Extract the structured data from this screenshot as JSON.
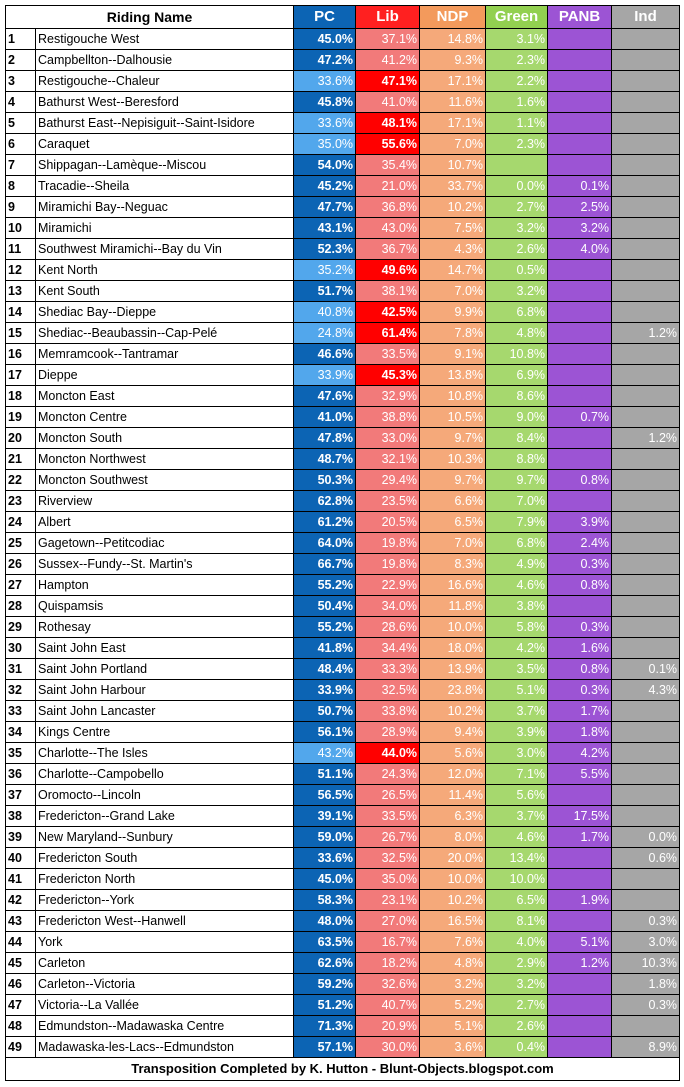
{
  "headers": {
    "riding": "Riding Name",
    "pc": "PC",
    "lib": "Lib",
    "ndp": "NDP",
    "green": "Green",
    "panb": "PANB",
    "ind": "Ind"
  },
  "rows": [
    {
      "n": "1",
      "name": "Restigouche West",
      "pc": "45.0%",
      "lib": "37.1%",
      "ndp": "14.8%",
      "green": "3.1%",
      "panb": "",
      "ind": "",
      "win": "pc"
    },
    {
      "n": "2",
      "name": "Campbellton--Dalhousie",
      "pc": "47.2%",
      "lib": "41.2%",
      "ndp": "9.3%",
      "green": "2.3%",
      "panb": "",
      "ind": "",
      "win": "pc"
    },
    {
      "n": "3",
      "name": "Restigouche--Chaleur",
      "pc": "33.6%",
      "lib": "47.1%",
      "ndp": "17.1%",
      "green": "2.2%",
      "panb": "",
      "ind": "",
      "win": "lib"
    },
    {
      "n": "4",
      "name": "Bathurst West--Beresford",
      "pc": "45.8%",
      "lib": "41.0%",
      "ndp": "11.6%",
      "green": "1.6%",
      "panb": "",
      "ind": "",
      "win": "pc"
    },
    {
      "n": "5",
      "name": "Bathurst East--Nepisiguit--Saint-Isidore",
      "pc": "33.6%",
      "lib": "48.1%",
      "ndp": "17.1%",
      "green": "1.1%",
      "panb": "",
      "ind": "",
      "win": "lib"
    },
    {
      "n": "6",
      "name": "Caraquet",
      "pc": "35.0%",
      "lib": "55.6%",
      "ndp": "7.0%",
      "green": "2.3%",
      "panb": "",
      "ind": "",
      "win": "lib"
    },
    {
      "n": "7",
      "name": "Shippagan--Lamèque--Miscou",
      "pc": "54.0%",
      "lib": "35.4%",
      "ndp": "10.7%",
      "green": "",
      "panb": "",
      "ind": "",
      "win": "pc"
    },
    {
      "n": "8",
      "name": "Tracadie--Sheila",
      "pc": "45.2%",
      "lib": "21.0%",
      "ndp": "33.7%",
      "green": "0.0%",
      "panb": "0.1%",
      "ind": "",
      "win": "pc"
    },
    {
      "n": "9",
      "name": "Miramichi Bay--Neguac",
      "pc": "47.7%",
      "lib": "36.8%",
      "ndp": "10.2%",
      "green": "2.7%",
      "panb": "2.5%",
      "ind": "",
      "win": "pc"
    },
    {
      "n": "10",
      "name": "Miramichi",
      "pc": "43.1%",
      "lib": "43.0%",
      "ndp": "7.5%",
      "green": "3.2%",
      "panb": "3.2%",
      "ind": "",
      "win": "pc"
    },
    {
      "n": "11",
      "name": "Southwest Miramichi--Bay du Vin",
      "pc": "52.3%",
      "lib": "36.7%",
      "ndp": "4.3%",
      "green": "2.6%",
      "panb": "4.0%",
      "ind": "",
      "win": "pc"
    },
    {
      "n": "12",
      "name": "Kent North",
      "pc": "35.2%",
      "lib": "49.6%",
      "ndp": "14.7%",
      "green": "0.5%",
      "panb": "",
      "ind": "",
      "win": "lib"
    },
    {
      "n": "13",
      "name": "Kent South",
      "pc": "51.7%",
      "lib": "38.1%",
      "ndp": "7.0%",
      "green": "3.2%",
      "panb": "",
      "ind": "",
      "win": "pc"
    },
    {
      "n": "14",
      "name": "Shediac Bay--Dieppe",
      "pc": "40.8%",
      "lib": "42.5%",
      "ndp": "9.9%",
      "green": "6.8%",
      "panb": "",
      "ind": "",
      "win": "lib"
    },
    {
      "n": "15",
      "name": "Shediac--Beaubassin--Cap-Pelé",
      "pc": "24.8%",
      "lib": "61.4%",
      "ndp": "7.8%",
      "green": "4.8%",
      "panb": "",
      "ind": "1.2%",
      "win": "lib"
    },
    {
      "n": "16",
      "name": "Memramcook--Tantramar",
      "pc": "46.6%",
      "lib": "33.5%",
      "ndp": "9.1%",
      "green": "10.8%",
      "panb": "",
      "ind": "",
      "win": "pc"
    },
    {
      "n": "17",
      "name": "Dieppe",
      "pc": "33.9%",
      "lib": "45.3%",
      "ndp": "13.8%",
      "green": "6.9%",
      "panb": "",
      "ind": "",
      "win": "lib"
    },
    {
      "n": "18",
      "name": "Moncton East",
      "pc": "47.6%",
      "lib": "32.9%",
      "ndp": "10.8%",
      "green": "8.6%",
      "panb": "",
      "ind": "",
      "win": "pc"
    },
    {
      "n": "19",
      "name": "Moncton Centre",
      "pc": "41.0%",
      "lib": "38.8%",
      "ndp": "10.5%",
      "green": "9.0%",
      "panb": "0.7%",
      "ind": "",
      "win": "pc"
    },
    {
      "n": "20",
      "name": "Moncton South",
      "pc": "47.8%",
      "lib": "33.0%",
      "ndp": "9.7%",
      "green": "8.4%",
      "panb": "",
      "ind": "1.2%",
      "win": "pc"
    },
    {
      "n": "21",
      "name": "Moncton Northwest",
      "pc": "48.7%",
      "lib": "32.1%",
      "ndp": "10.3%",
      "green": "8.8%",
      "panb": "",
      "ind": "",
      "win": "pc"
    },
    {
      "n": "22",
      "name": "Moncton Southwest",
      "pc": "50.3%",
      "lib": "29.4%",
      "ndp": "9.7%",
      "green": "9.7%",
      "panb": "0.8%",
      "ind": "",
      "win": "pc"
    },
    {
      "n": "23",
      "name": "Riverview",
      "pc": "62.8%",
      "lib": "23.5%",
      "ndp": "6.6%",
      "green": "7.0%",
      "panb": "",
      "ind": "",
      "win": "pc"
    },
    {
      "n": "24",
      "name": "Albert",
      "pc": "61.2%",
      "lib": "20.5%",
      "ndp": "6.5%",
      "green": "7.9%",
      "panb": "3.9%",
      "ind": "",
      "win": "pc"
    },
    {
      "n": "25",
      "name": "Gagetown--Petitcodiac",
      "pc": "64.0%",
      "lib": "19.8%",
      "ndp": "7.0%",
      "green": "6.8%",
      "panb": "2.4%",
      "ind": "",
      "win": "pc"
    },
    {
      "n": "26",
      "name": "Sussex--Fundy--St. Martin's",
      "pc": "66.7%",
      "lib": "19.8%",
      "ndp": "8.3%",
      "green": "4.9%",
      "panb": "0.3%",
      "ind": "",
      "win": "pc"
    },
    {
      "n": "27",
      "name": "Hampton",
      "pc": "55.2%",
      "lib": "22.9%",
      "ndp": "16.6%",
      "green": "4.6%",
      "panb": "0.8%",
      "ind": "",
      "win": "pc"
    },
    {
      "n": "28",
      "name": "Quispamsis",
      "pc": "50.4%",
      "lib": "34.0%",
      "ndp": "11.8%",
      "green": "3.8%",
      "panb": "",
      "ind": "",
      "win": "pc"
    },
    {
      "n": "29",
      "name": "Rothesay",
      "pc": "55.2%",
      "lib": "28.6%",
      "ndp": "10.0%",
      "green": "5.8%",
      "panb": "0.3%",
      "ind": "",
      "win": "pc"
    },
    {
      "n": "30",
      "name": "Saint John East",
      "pc": "41.8%",
      "lib": "34.4%",
      "ndp": "18.0%",
      "green": "4.2%",
      "panb": "1.6%",
      "ind": "",
      "win": "pc"
    },
    {
      "n": "31",
      "name": "Saint John Portland",
      "pc": "48.4%",
      "lib": "33.3%",
      "ndp": "13.9%",
      "green": "3.5%",
      "panb": "0.8%",
      "ind": "0.1%",
      "win": "pc"
    },
    {
      "n": "32",
      "name": "Saint John Harbour",
      "pc": "33.9%",
      "lib": "32.5%",
      "ndp": "23.8%",
      "green": "5.1%",
      "panb": "0.3%",
      "ind": "4.3%",
      "win": "pc"
    },
    {
      "n": "33",
      "name": "Saint John Lancaster",
      "pc": "50.7%",
      "lib": "33.8%",
      "ndp": "10.2%",
      "green": "3.7%",
      "panb": "1.7%",
      "ind": "",
      "win": "pc"
    },
    {
      "n": "34",
      "name": "Kings Centre",
      "pc": "56.1%",
      "lib": "28.9%",
      "ndp": "9.4%",
      "green": "3.9%",
      "panb": "1.8%",
      "ind": "",
      "win": "pc"
    },
    {
      "n": "35",
      "name": "Charlotte--The Isles",
      "pc": "43.2%",
      "lib": "44.0%",
      "ndp": "5.6%",
      "green": "3.0%",
      "panb": "4.2%",
      "ind": "",
      "win": "lib"
    },
    {
      "n": "36",
      "name": "Charlotte--Campobello",
      "pc": "51.1%",
      "lib": "24.3%",
      "ndp": "12.0%",
      "green": "7.1%",
      "panb": "5.5%",
      "ind": "",
      "win": "pc"
    },
    {
      "n": "37",
      "name": "Oromocto--Lincoln",
      "pc": "56.5%",
      "lib": "26.5%",
      "ndp": "11.4%",
      "green": "5.6%",
      "panb": "",
      "ind": "",
      "win": "pc"
    },
    {
      "n": "38",
      "name": "Fredericton--Grand Lake",
      "pc": "39.1%",
      "lib": "33.5%",
      "ndp": "6.3%",
      "green": "3.7%",
      "panb": "17.5%",
      "ind": "",
      "win": "pc"
    },
    {
      "n": "39",
      "name": "New Maryland--Sunbury",
      "pc": "59.0%",
      "lib": "26.7%",
      "ndp": "8.0%",
      "green": "4.6%",
      "panb": "1.7%",
      "ind": "0.0%",
      "win": "pc"
    },
    {
      "n": "40",
      "name": "Fredericton South",
      "pc": "33.6%",
      "lib": "32.5%",
      "ndp": "20.0%",
      "green": "13.4%",
      "panb": "",
      "ind": "0.6%",
      "win": "pc"
    },
    {
      "n": "41",
      "name": "Fredericton North",
      "pc": "45.0%",
      "lib": "35.0%",
      "ndp": "10.0%",
      "green": "10.0%",
      "panb": "",
      "ind": "",
      "win": "pc"
    },
    {
      "n": "42",
      "name": "Fredericton--York",
      "pc": "58.3%",
      "lib": "23.1%",
      "ndp": "10.2%",
      "green": "6.5%",
      "panb": "1.9%",
      "ind": "",
      "win": "pc"
    },
    {
      "n": "43",
      "name": "Fredericton West--Hanwell",
      "pc": "48.0%",
      "lib": "27.0%",
      "ndp": "16.5%",
      "green": "8.1%",
      "panb": "",
      "ind": "0.3%",
      "win": "pc"
    },
    {
      "n": "44",
      "name": "York",
      "pc": "63.5%",
      "lib": "16.7%",
      "ndp": "7.6%",
      "green": "4.0%",
      "panb": "5.1%",
      "ind": "3.0%",
      "win": "pc"
    },
    {
      "n": "45",
      "name": "Carleton",
      "pc": "62.6%",
      "lib": "18.2%",
      "ndp": "4.8%",
      "green": "2.9%",
      "panb": "1.2%",
      "ind": "10.3%",
      "win": "pc"
    },
    {
      "n": "46",
      "name": "Carleton--Victoria",
      "pc": "59.2%",
      "lib": "32.6%",
      "ndp": "3.2%",
      "green": "3.2%",
      "panb": "",
      "ind": "1.8%",
      "win": "pc"
    },
    {
      "n": "47",
      "name": "Victoria--La Vallée",
      "pc": "51.2%",
      "lib": "40.7%",
      "ndp": "5.2%",
      "green": "2.7%",
      "panb": "",
      "ind": "0.3%",
      "win": "pc"
    },
    {
      "n": "48",
      "name": "Edmundston--Madawaska Centre",
      "pc": "71.3%",
      "lib": "20.9%",
      "ndp": "5.1%",
      "green": "2.6%",
      "panb": "",
      "ind": "",
      "win": "pc"
    },
    {
      "n": "49",
      "name": "Madawaska-les-Lacs--Edmundston",
      "pc": "57.1%",
      "lib": "30.0%",
      "ndp": "3.6%",
      "green": "0.4%",
      "panb": "",
      "ind": "8.9%",
      "win": "pc"
    }
  ],
  "footer": "Transposition Completed by K. Hutton - Blunt-Objects.blogspot.com"
}
